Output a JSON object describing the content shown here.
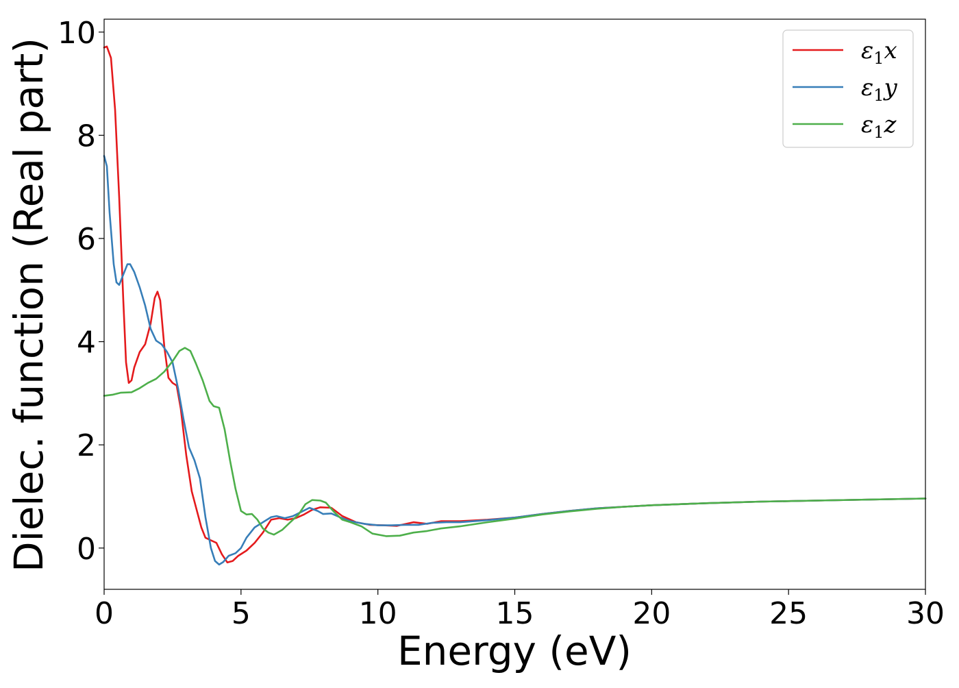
{
  "chart_data": {
    "type": "line",
    "xlabel": "Energy (eV)",
    "ylabel": "Dielec. function (Real part)",
    "xlim": [
      0,
      30
    ],
    "ylim": [
      -0.8,
      10.25
    ],
    "xticks": [
      0,
      5,
      10,
      15,
      20,
      25,
      30
    ],
    "yticks": [
      0,
      2,
      4,
      6,
      8,
      10
    ],
    "grid": false,
    "legend_position": "top-right",
    "series": [
      {
        "name": "ε1x",
        "legend_base": "ε",
        "legend_sub": "1",
        "legend_var": "x",
        "color": "#e41a1c",
        "points": [
          [
            0,
            9.7
          ],
          [
            0.1,
            9.72
          ],
          [
            0.25,
            9.5
          ],
          [
            0.4,
            8.5
          ],
          [
            0.55,
            6.8
          ],
          [
            0.7,
            4.8
          ],
          [
            0.8,
            3.6
          ],
          [
            0.9,
            3.2
          ],
          [
            1.0,
            3.25
          ],
          [
            1.1,
            3.5
          ],
          [
            1.3,
            3.8
          ],
          [
            1.5,
            3.95
          ],
          [
            1.7,
            4.35
          ],
          [
            1.85,
            4.85
          ],
          [
            1.95,
            4.97
          ],
          [
            2.05,
            4.8
          ],
          [
            2.2,
            3.9
          ],
          [
            2.35,
            3.3
          ],
          [
            2.5,
            3.2
          ],
          [
            2.65,
            3.15
          ],
          [
            2.8,
            2.7
          ],
          [
            3.0,
            1.8
          ],
          [
            3.2,
            1.1
          ],
          [
            3.4,
            0.7
          ],
          [
            3.55,
            0.4
          ],
          [
            3.7,
            0.2
          ],
          [
            3.9,
            0.15
          ],
          [
            4.1,
            0.1
          ],
          [
            4.3,
            -0.12
          ],
          [
            4.5,
            -0.28
          ],
          [
            4.7,
            -0.25
          ],
          [
            4.9,
            -0.15
          ],
          [
            5.2,
            -0.05
          ],
          [
            5.5,
            0.1
          ],
          [
            5.8,
            0.3
          ],
          [
            6.1,
            0.55
          ],
          [
            6.4,
            0.58
          ],
          [
            6.7,
            0.55
          ],
          [
            7.0,
            0.58
          ],
          [
            7.3,
            0.65
          ],
          [
            7.6,
            0.74
          ],
          [
            7.9,
            0.79
          ],
          [
            8.3,
            0.78
          ],
          [
            8.7,
            0.62
          ],
          [
            9.2,
            0.5
          ],
          [
            9.7,
            0.45
          ],
          [
            10.2,
            0.44
          ],
          [
            10.7,
            0.43
          ],
          [
            11.3,
            0.5
          ],
          [
            11.8,
            0.47
          ],
          [
            12.3,
            0.52
          ],
          [
            13.0,
            0.52
          ],
          [
            14.0,
            0.55
          ],
          [
            15,
            0.59
          ],
          [
            16,
            0.66
          ],
          [
            17,
            0.72
          ],
          [
            18,
            0.77
          ],
          [
            19,
            0.8
          ],
          [
            20,
            0.83
          ],
          [
            22,
            0.87
          ],
          [
            24,
            0.9
          ],
          [
            26,
            0.92
          ],
          [
            28,
            0.94
          ],
          [
            30,
            0.96
          ]
        ]
      },
      {
        "name": "ε1y",
        "legend_base": "ε",
        "legend_sub": "1",
        "legend_var": "y",
        "color": "#377eb8",
        "points": [
          [
            0,
            7.6
          ],
          [
            0.1,
            7.4
          ],
          [
            0.2,
            6.5
          ],
          [
            0.35,
            5.5
          ],
          [
            0.45,
            5.15
          ],
          [
            0.55,
            5.1
          ],
          [
            0.7,
            5.3
          ],
          [
            0.85,
            5.5
          ],
          [
            0.95,
            5.5
          ],
          [
            1.1,
            5.35
          ],
          [
            1.3,
            5.05
          ],
          [
            1.5,
            4.7
          ],
          [
            1.7,
            4.25
          ],
          [
            1.9,
            4.02
          ],
          [
            2.1,
            3.95
          ],
          [
            2.3,
            3.8
          ],
          [
            2.5,
            3.6
          ],
          [
            2.7,
            3.1
          ],
          [
            2.9,
            2.5
          ],
          [
            3.1,
            1.95
          ],
          [
            3.3,
            1.7
          ],
          [
            3.5,
            1.35
          ],
          [
            3.7,
            0.6
          ],
          [
            3.9,
            0.0
          ],
          [
            4.05,
            -0.25
          ],
          [
            4.2,
            -0.32
          ],
          [
            4.35,
            -0.27
          ],
          [
            4.55,
            -0.15
          ],
          [
            4.8,
            -0.1
          ],
          [
            5.0,
            0.0
          ],
          [
            5.2,
            0.2
          ],
          [
            5.5,
            0.4
          ],
          [
            5.8,
            0.5
          ],
          [
            6.1,
            0.6
          ],
          [
            6.3,
            0.62
          ],
          [
            6.6,
            0.58
          ],
          [
            6.9,
            0.62
          ],
          [
            7.2,
            0.7
          ],
          [
            7.5,
            0.78
          ],
          [
            7.8,
            0.72
          ],
          [
            8.0,
            0.66
          ],
          [
            8.3,
            0.67
          ],
          [
            8.6,
            0.6
          ],
          [
            9.0,
            0.52
          ],
          [
            9.5,
            0.47
          ],
          [
            10,
            0.44
          ],
          [
            10.5,
            0.44
          ],
          [
            11,
            0.45
          ],
          [
            11.5,
            0.45
          ],
          [
            12.0,
            0.49
          ],
          [
            12.5,
            0.5
          ],
          [
            13,
            0.5
          ],
          [
            14,
            0.54
          ],
          [
            15,
            0.59
          ],
          [
            16,
            0.66
          ],
          [
            17,
            0.72
          ],
          [
            18,
            0.77
          ],
          [
            19,
            0.8
          ],
          [
            20,
            0.83
          ],
          [
            22,
            0.87
          ],
          [
            24,
            0.9
          ],
          [
            26,
            0.92
          ],
          [
            28,
            0.94
          ],
          [
            30,
            0.96
          ]
        ]
      },
      {
        "name": "ε1z",
        "legend_base": "ε",
        "legend_sub": "1",
        "legend_var": "z",
        "color": "#4daf4a",
        "points": [
          [
            0,
            2.95
          ],
          [
            0.3,
            2.97
          ],
          [
            0.6,
            3.01
          ],
          [
            1.0,
            3.02
          ],
          [
            1.3,
            3.1
          ],
          [
            1.6,
            3.2
          ],
          [
            1.9,
            3.28
          ],
          [
            2.2,
            3.42
          ],
          [
            2.5,
            3.62
          ],
          [
            2.75,
            3.82
          ],
          [
            2.95,
            3.88
          ],
          [
            3.15,
            3.82
          ],
          [
            3.35,
            3.58
          ],
          [
            3.6,
            3.25
          ],
          [
            3.85,
            2.85
          ],
          [
            4.0,
            2.75
          ],
          [
            4.2,
            2.72
          ],
          [
            4.4,
            2.3
          ],
          [
            4.6,
            1.7
          ],
          [
            4.8,
            1.15
          ],
          [
            5.0,
            0.72
          ],
          [
            5.2,
            0.65
          ],
          [
            5.4,
            0.66
          ],
          [
            5.6,
            0.55
          ],
          [
            5.8,
            0.38
          ],
          [
            6.0,
            0.3
          ],
          [
            6.2,
            0.26
          ],
          [
            6.5,
            0.35
          ],
          [
            6.8,
            0.5
          ],
          [
            7.1,
            0.65
          ],
          [
            7.35,
            0.85
          ],
          [
            7.6,
            0.93
          ],
          [
            7.9,
            0.92
          ],
          [
            8.1,
            0.88
          ],
          [
            8.4,
            0.7
          ],
          [
            8.7,
            0.55
          ],
          [
            9.0,
            0.5
          ],
          [
            9.4,
            0.42
          ],
          [
            9.8,
            0.28
          ],
          [
            10.3,
            0.23
          ],
          [
            10.8,
            0.24
          ],
          [
            11.3,
            0.3
          ],
          [
            11.8,
            0.33
          ],
          [
            12.3,
            0.38
          ],
          [
            13,
            0.42
          ],
          [
            14,
            0.5
          ],
          [
            15,
            0.57
          ],
          [
            16,
            0.65
          ],
          [
            17,
            0.71
          ],
          [
            18,
            0.76
          ],
          [
            19,
            0.8
          ],
          [
            20,
            0.83
          ],
          [
            22,
            0.87
          ],
          [
            24,
            0.9
          ],
          [
            26,
            0.92
          ],
          [
            28,
            0.94
          ],
          [
            30,
            0.96
          ]
        ]
      }
    ]
  }
}
